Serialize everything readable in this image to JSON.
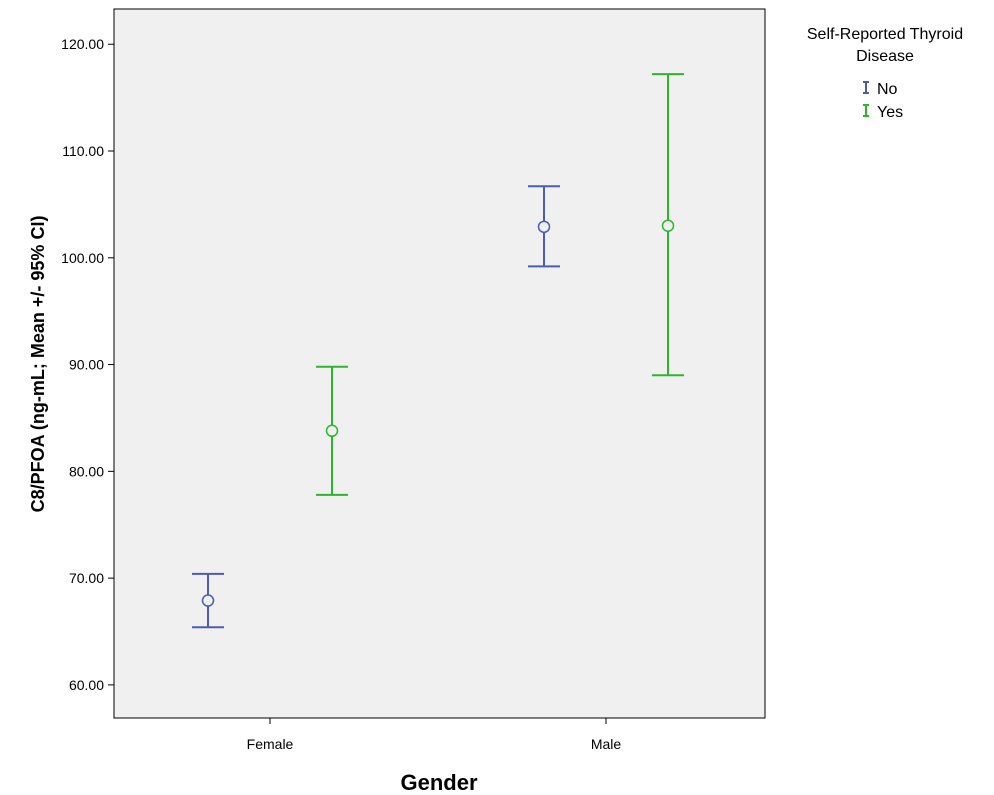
{
  "chart_data": {
    "type": "errorbar",
    "xlabel": "Gender",
    "ylabel": "C8/PFOA (ng-mL; Mean +/- 95% CI)",
    "categories": [
      "Female",
      "Male"
    ],
    "ylim": [
      56.9,
      123.3
    ],
    "yticks": [
      60,
      70,
      80,
      90,
      100,
      110,
      120
    ],
    "ytick_labels": [
      "60.00",
      "70.00",
      "80.00",
      "90.00",
      "100.00",
      "110.00",
      "120.00"
    ],
    "grid": false,
    "legend": {
      "title": "Self-Reported Thyroid Disease",
      "title_lines": [
        "Self-Reported Thyroid",
        "Disease"
      ],
      "placement": "top-right"
    },
    "series": [
      {
        "name": "No",
        "color": "#4a5db5",
        "mean": [
          67.9,
          102.9
        ],
        "lower": [
          65.4,
          99.2
        ],
        "upper": [
          70.4,
          106.7
        ]
      },
      {
        "name": "Yes",
        "color": "#2db52d",
        "mean": [
          83.8,
          103.0
        ],
        "lower": [
          77.8,
          89.0
        ],
        "upper": [
          89.8,
          117.2
        ]
      }
    ],
    "colors": {
      "background": "#f0f0f0",
      "axis": "#000000"
    }
  }
}
